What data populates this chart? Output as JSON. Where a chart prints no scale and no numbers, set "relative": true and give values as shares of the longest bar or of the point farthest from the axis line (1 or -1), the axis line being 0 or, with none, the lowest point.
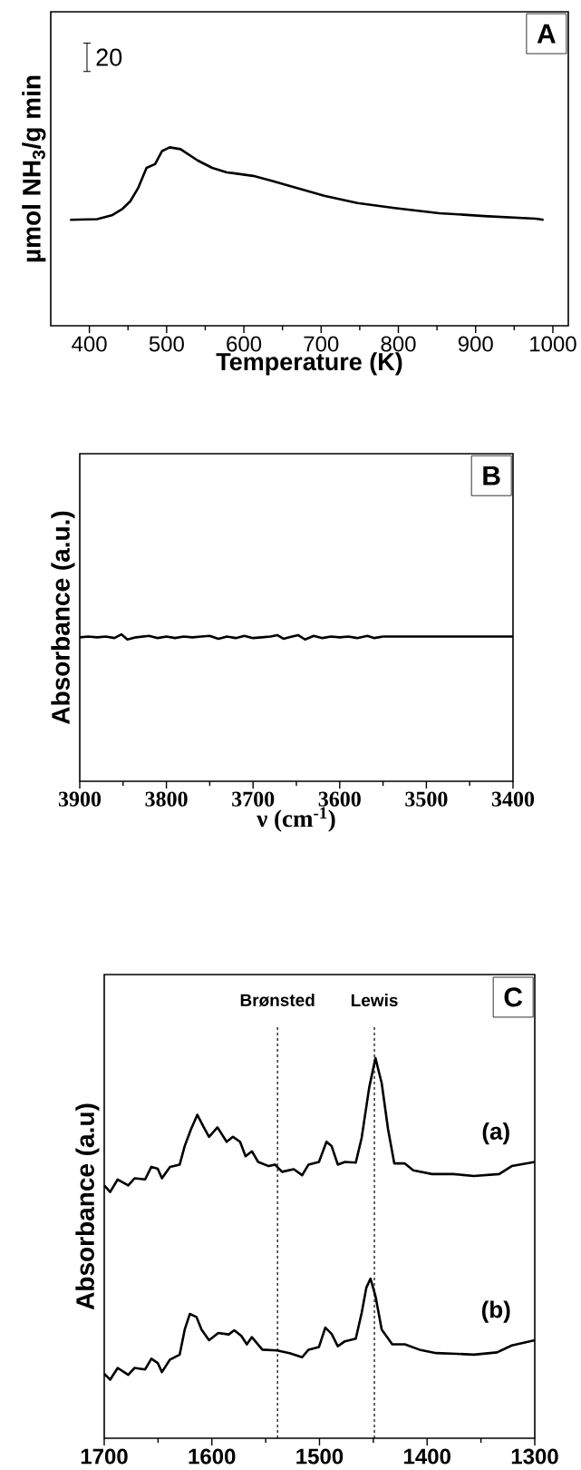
{
  "chart_data": [
    {
      "type": "line",
      "xlabel": "Temperature (K)",
      "ylabel": "µmol NH$_{3}$/g min",
      "relative": true,
      "xlim": [
        350,
        1020
      ],
      "xticks": [
        400,
        500,
        600,
        700,
        800,
        900,
        1000
      ],
      "line_style": "solid",
      "marker": "none",
      "annotations": [
        "A",
        "20"
      ],
      "series": [
        {
          "color": "#000000",
          "x": [
            375,
            410,
            429,
            443,
            453,
            463,
            474,
            485,
            494,
            504,
            518,
            540,
            559,
            578,
            612,
            636,
            670,
            704,
            747,
            795,
            853,
            911,
            978,
            988
          ],
          "values": [
            0.594,
            0.598,
            0.619,
            0.656,
            0.698,
            0.771,
            0.885,
            0.906,
            0.979,
            1.0,
            0.99,
            0.927,
            0.885,
            0.86,
            0.84,
            0.813,
            0.771,
            0.729,
            0.688,
            0.66,
            0.631,
            0.615,
            0.6,
            0.594
          ]
        }
      ]
    },
    {
      "type": "line",
      "xlabel": "ν (cm$^{-1}$)",
      "ylabel": "Absorbance (a.u.)",
      "relative": true,
      "xlim": [
        3900,
        3400
      ],
      "xticks": [
        3900,
        3800,
        3700,
        3600,
        3500,
        3400
      ],
      "line_style": "solid",
      "marker": "none",
      "annotations": [
        "B"
      ],
      "series": [
        {
          "color": "#000000",
          "x": [
            3900,
            3890,
            3880,
            3870,
            3860,
            3852,
            3845,
            3835,
            3820,
            3810,
            3800,
            3790,
            3780,
            3770,
            3760,
            3750,
            3740,
            3730,
            3720,
            3710,
            3700,
            3690,
            3680,
            3672,
            3665,
            3655,
            3648,
            3640,
            3630,
            3620,
            3610,
            3600,
            3590,
            3580,
            3568,
            3560,
            3550,
            3520,
            3400
          ],
          "values": [
            0.98,
            0.985,
            0.98,
            0.985,
            0.975,
            1.0,
            0.965,
            0.98,
            0.99,
            0.975,
            0.985,
            0.975,
            0.985,
            0.98,
            0.985,
            0.99,
            0.97,
            0.985,
            0.975,
            0.99,
            0.975,
            0.98,
            0.985,
            0.995,
            0.97,
            0.985,
            0.995,
            0.965,
            0.99,
            0.975,
            0.985,
            0.98,
            0.985,
            0.975,
            0.99,
            0.975,
            0.985,
            0.985,
            0.985
          ]
        }
      ]
    },
    {
      "type": "line",
      "ylabel": "Absorbance (a.u)",
      "relative": true,
      "xlim": [
        1700,
        1300
      ],
      "xticks": [
        1700,
        1600,
        1500,
        1400,
        1300
      ],
      "line_style": "solid",
      "marker": "none",
      "annotations": [
        "C"
      ],
      "ref_lines": [
        {
          "axis": "x",
          "value": 1539,
          "label": "Brønsted",
          "line_style": "dashed",
          "color": "#000000"
        },
        {
          "axis": "x",
          "value": 1449,
          "label": "Lewis",
          "line_style": "dashed",
          "color": "#000000"
        }
      ],
      "series": [
        {
          "name": "(a)",
          "color": "#000000",
          "x": [
            1700,
            1694.5,
            1687.5,
            1677.7,
            1671.8,
            1662,
            1656.2,
            1650.3,
            1646.4,
            1638.9,
            1629.9,
            1625.2,
            1619.4,
            1613.5,
            1607.7,
            1602.6,
            1594.8,
            1586.3,
            1580.4,
            1573.8,
            1568.7,
            1562.8,
            1557,
            1547.2,
            1541.4,
            1534.8,
            1523.9,
            1516.1,
            1510.2,
            1500.5,
            1493.5,
            1488.8,
            1483,
            1476.4,
            1466.3,
            1460.8,
            1453.8,
            1448,
            1442.2,
            1436.3,
            1430.5,
            1420.7,
            1412.9,
            1395.4,
            1375.9,
            1356.5,
            1333.1,
            1321.4,
            1300
          ],
          "values": [
            0.665,
            0.648,
            0.681,
            0.665,
            0.684,
            0.681,
            0.714,
            0.709,
            0.684,
            0.714,
            0.72,
            0.769,
            0.813,
            0.851,
            0.819,
            0.793,
            0.818,
            0.78,
            0.793,
            0.78,
            0.742,
            0.755,
            0.727,
            0.716,
            0.72,
            0.701,
            0.708,
            0.692,
            0.72,
            0.727,
            0.78,
            0.769,
            0.72,
            0.727,
            0.725,
            0.791,
            0.923,
            1.0,
            0.934,
            0.813,
            0.723,
            0.723,
            0.705,
            0.695,
            0.695,
            0.69,
            0.695,
            0.716,
            0.727
          ]
        },
        {
          "name": "(b)",
          "color": "#000000",
          "x": [
            1700,
            1694.5,
            1687.5,
            1677.7,
            1671.8,
            1662,
            1656.2,
            1650.3,
            1646.4,
            1638.9,
            1629.9,
            1625.2,
            1620.5,
            1614.3,
            1609.6,
            1602.6,
            1594,
            1584.3,
            1579.2,
            1572.6,
            1567.5,
            1562.8,
            1553.1,
            1539.4,
            1527.8,
            1516.1,
            1510.2,
            1500.5,
            1494.6,
            1488.8,
            1483,
            1476.4,
            1466.3,
            1460.8,
            1456.5,
            1452.6,
            1448,
            1442.2,
            1432.4,
            1420.7,
            1407.1,
            1391.5,
            1372,
            1356.5,
            1335,
            1321.4,
            1300
          ],
          "values": [
            0.17,
            0.154,
            0.185,
            0.167,
            0.185,
            0.181,
            0.209,
            0.198,
            0.174,
            0.207,
            0.22,
            0.286,
            0.327,
            0.319,
            0.286,
            0.258,
            0.277,
            0.273,
            0.284,
            0.269,
            0.247,
            0.266,
            0.233,
            0.231,
            0.224,
            0.213,
            0.233,
            0.24,
            0.291,
            0.275,
            0.242,
            0.255,
            0.262,
            0.33,
            0.396,
            0.42,
            0.374,
            0.286,
            0.247,
            0.247,
            0.233,
            0.224,
            0.222,
            0.22,
            0.226,
            0.244,
            0.258
          ]
        }
      ]
    }
  ]
}
